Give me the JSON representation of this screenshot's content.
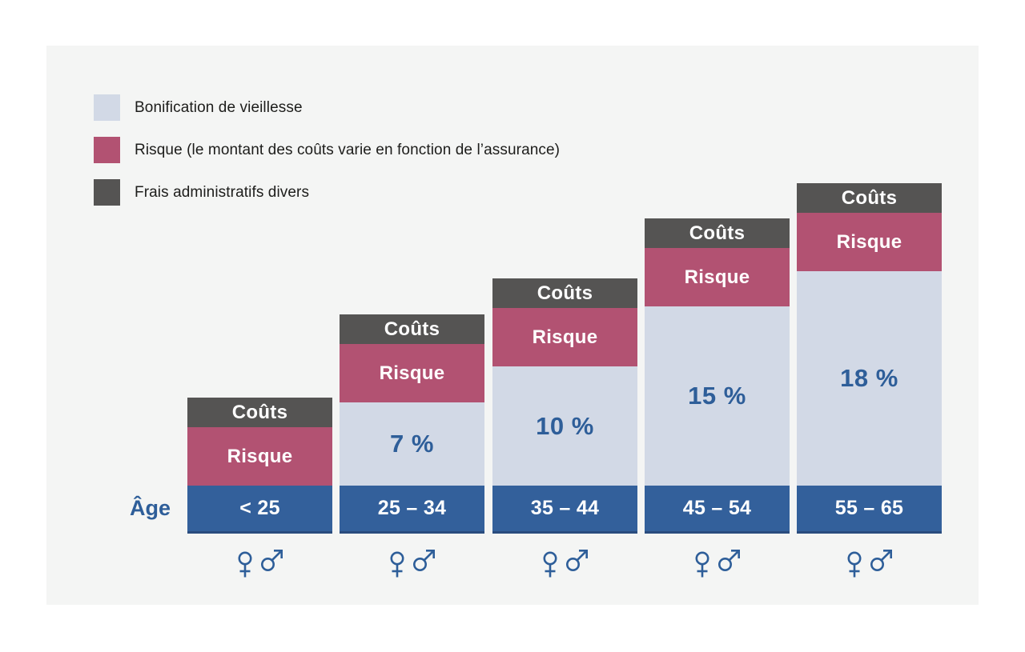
{
  "legend": {
    "items": [
      {
        "id": "bonification",
        "label": "Bonification de vieillesse",
        "color": "#D2D9E6"
      },
      {
        "id": "risque",
        "label": "Risque (le montant des coûts varie en fonction de l’assurance)",
        "color": "#B25272"
      },
      {
        "id": "frais",
        "label": "Frais administratifs divers",
        "color": "#555453"
      }
    ]
  },
  "axis": {
    "label": "Âge",
    "gender_symbols": "♀ ♂"
  },
  "chart_data": {
    "type": "bar",
    "stacked": true,
    "title": "",
    "xlabel": "Âge",
    "ylabel": "",
    "grid": false,
    "legend_position": "top-left",
    "categories": [
      "< 25",
      "25 – 34",
      "35 – 44",
      "45 – 54",
      "55 – 65"
    ],
    "series": [
      {
        "name": "Bonification de vieillesse",
        "unit": "%",
        "values": [
          0,
          7,
          10,
          15,
          18
        ]
      },
      {
        "name": "Risque",
        "note": "le montant des coûts varie en fonction de l’assurance",
        "segment_label": "Risque",
        "values": [
          "Risque",
          "Risque",
          "Risque",
          "Risque",
          "Risque"
        ]
      },
      {
        "name": "Frais administratifs divers",
        "segment_label": "Coûts",
        "values": [
          "Coûts",
          "Coûts",
          "Coûts",
          "Coûts",
          "Coûts"
        ]
      }
    ],
    "bars": [
      {
        "age_label": "< 25",
        "bonification_pct": 0,
        "pct_label": "",
        "risque_label": "Risque",
        "couts_label": "Coûts",
        "gender": "♀ ♂"
      },
      {
        "age_label": "25 – 34",
        "bonification_pct": 7,
        "pct_label": "7 %",
        "risque_label": "Risque",
        "couts_label": "Coûts",
        "gender": "♀ ♂"
      },
      {
        "age_label": "35 – 44",
        "bonification_pct": 10,
        "pct_label": "10 %",
        "risque_label": "Risque",
        "couts_label": "Coûts",
        "gender": "♀ ♂"
      },
      {
        "age_label": "45 – 54",
        "bonification_pct": 15,
        "pct_label": "15 %",
        "risque_label": "Risque",
        "couts_label": "Coûts",
        "gender": "♀ ♂"
      },
      {
        "age_label": "55 – 65",
        "bonification_pct": 18,
        "pct_label": "18 %",
        "risque_label": "Risque",
        "couts_label": "Coûts",
        "gender": "♀ ♂"
      }
    ],
    "colors": {
      "bonification": "#D2D9E6",
      "risque": "#B25272",
      "couts": "#555453",
      "age_band": "#33609B",
      "age_band_edge": "#2A4C7E",
      "accent_text": "#2E5E99",
      "panel_background": "#F4F5F4"
    }
  }
}
